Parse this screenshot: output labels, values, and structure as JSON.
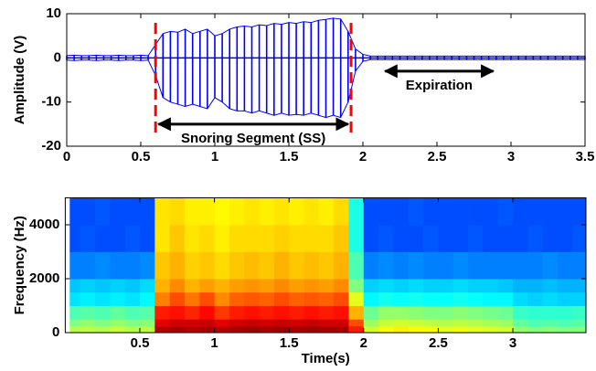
{
  "chart_data": [
    {
      "type": "waveform",
      "ylabel": "Amplitude (V)",
      "color": "#0000ff",
      "xlim": [
        0,
        3.5
      ],
      "xticks": [
        0,
        0.5,
        1,
        1.5,
        2,
        2.5,
        3,
        3.5
      ],
      "ylim": [
        -20,
        10
      ],
      "yticks": [
        -20,
        -10,
        0,
        10
      ],
      "x": [
        0,
        0.05,
        0.1,
        0.15,
        0.2,
        0.25,
        0.3,
        0.35,
        0.4,
        0.45,
        0.5,
        0.55,
        0.6,
        0.65,
        0.7,
        0.75,
        0.8,
        0.85,
        0.9,
        0.95,
        1,
        1.05,
        1.1,
        1.15,
        1.2,
        1.25,
        1.3,
        1.35,
        1.4,
        1.45,
        1.5,
        1.55,
        1.6,
        1.65,
        1.7,
        1.75,
        1.8,
        1.85,
        1.9,
        1.95,
        2,
        2.05,
        2.1,
        2.15,
        2.2,
        2.25,
        2.3,
        2.35,
        2.4,
        2.45,
        2.5,
        2.55,
        2.6,
        2.65,
        2.7,
        2.75,
        2.8,
        2.85,
        2.9,
        2.95,
        3,
        3.05,
        3.1,
        3.15,
        3.2,
        3.25,
        3.3,
        3.35,
        3.4,
        3.45,
        3.5
      ],
      "max": [
        0.5,
        0.6,
        0.5,
        0.5,
        0.6,
        0.5,
        0.5,
        0.6,
        0.5,
        0.5,
        0.6,
        0.5,
        3,
        5.5,
        6,
        5.8,
        6.5,
        5.5,
        6,
        6.5,
        5,
        5.5,
        6.5,
        7,
        7.2,
        7,
        7.5,
        7.3,
        7.8,
        7.6,
        8,
        7.8,
        8.2,
        8,
        8.5,
        8.7,
        9,
        8.8,
        6,
        2,
        0.8,
        0.4,
        0.4,
        0.4,
        0.4,
        0.4,
        0.4,
        0.4,
        0.4,
        0.4,
        0.4,
        0.4,
        0.4,
        0.4,
        0.4,
        0.4,
        0.4,
        0.4,
        0.4,
        0.4,
        0.4,
        0.4,
        0.4,
        0.4,
        0.4,
        0.4,
        0.4,
        0.4,
        0.4,
        0.4,
        0.4
      ],
      "min": [
        -0.5,
        -0.6,
        -0.5,
        -0.5,
        -0.6,
        -0.5,
        -0.5,
        -0.6,
        -0.5,
        -0.5,
        -0.6,
        -0.5,
        -4,
        -9,
        -10,
        -10.5,
        -11,
        -10.5,
        -11,
        -11.5,
        -9,
        -10,
        -11.5,
        -12,
        -12,
        -12.5,
        -12,
        -12.5,
        -13,
        -12.5,
        -13,
        -12.8,
        -13,
        -12.5,
        -13,
        -13.5,
        -13,
        -13.5,
        -10,
        -3,
        -0.8,
        -0.4,
        -0.4,
        -0.4,
        -0.4,
        -0.4,
        -0.4,
        -0.4,
        -0.4,
        -0.4,
        -0.4,
        -0.4,
        -0.4,
        -0.4,
        -0.4,
        -0.4,
        -0.4,
        -0.4,
        -0.4,
        -0.4,
        -0.4,
        -0.4,
        -0.4,
        -0.4,
        -0.4,
        -0.4,
        -0.4,
        -0.4,
        -0.4,
        -0.4,
        -0.4
      ],
      "markers": [
        {
          "x": 0.6,
          "color": "#ff0000"
        },
        {
          "x": 1.92,
          "color": "#ff0000"
        }
      ],
      "annotations": [
        {
          "text": "Snoring Segment (SS)",
          "x_start": 0.62,
          "x_end": 1.9,
          "y": -15
        },
        {
          "text": "Expiration",
          "x_start": 2.15,
          "x_end": 2.88,
          "y": -3
        }
      ]
    },
    {
      "type": "spectrogram",
      "xlabel": "Time(s)",
      "ylabel": "Frequency (Hz)",
      "colormap": "jet",
      "xlim": [
        0,
        3.49
      ],
      "xticks": [
        0.5,
        1,
        1.5,
        2,
        2.5,
        3
      ],
      "ylim": [
        0,
        5000
      ],
      "yticks": [
        0,
        2000,
        4000
      ],
      "xbins": [
        0.03,
        0.1,
        0.2,
        0.3,
        0.4,
        0.5,
        0.6,
        0.7,
        0.8,
        0.9,
        1,
        1.1,
        1.2,
        1.3,
        1.4,
        1.5,
        1.6,
        1.7,
        1.8,
        1.9,
        2,
        2.1,
        2.2,
        2.3,
        2.4,
        2.5,
        2.6,
        2.7,
        2.8,
        2.9,
        3,
        3.1,
        3.2,
        3.3,
        3.4,
        3.49
      ],
      "ybins": [
        0,
        250,
        500,
        1000,
        1500,
        2000,
        3000,
        4000,
        5000
      ],
      "z": [
        [
          0.55,
          0.5,
          0.45,
          0.35,
          0.32,
          0.25,
          0.2,
          0.2
        ],
        [
          0.56,
          0.52,
          0.46,
          0.36,
          0.33,
          0.25,
          0.21,
          0.2
        ],
        [
          0.55,
          0.5,
          0.45,
          0.35,
          0.32,
          0.26,
          0.2,
          0.21
        ],
        [
          0.57,
          0.52,
          0.47,
          0.36,
          0.33,
          0.25,
          0.2,
          0.2
        ],
        [
          0.55,
          0.5,
          0.45,
          0.35,
          0.32,
          0.25,
          0.21,
          0.2
        ],
        [
          0.56,
          0.51,
          0.46,
          0.37,
          0.34,
          0.26,
          0.2,
          0.2
        ],
        [
          0.95,
          0.9,
          0.85,
          0.75,
          0.7,
          0.68,
          0.65,
          0.65
        ],
        [
          0.96,
          0.92,
          0.86,
          0.8,
          0.74,
          0.7,
          0.68,
          0.66
        ],
        [
          0.95,
          0.92,
          0.84,
          0.76,
          0.7,
          0.67,
          0.65,
          0.64
        ],
        [
          0.96,
          0.93,
          0.87,
          0.8,
          0.72,
          0.68,
          0.66,
          0.64
        ],
        [
          0.95,
          0.9,
          0.82,
          0.74,
          0.7,
          0.66,
          0.64,
          0.63
        ],
        [
          0.96,
          0.92,
          0.85,
          0.78,
          0.72,
          0.68,
          0.66,
          0.64
        ],
        [
          0.97,
          0.93,
          0.86,
          0.79,
          0.73,
          0.69,
          0.66,
          0.65
        ],
        [
          0.96,
          0.92,
          0.85,
          0.78,
          0.72,
          0.68,
          0.66,
          0.64
        ],
        [
          0.97,
          0.93,
          0.86,
          0.8,
          0.74,
          0.7,
          0.67,
          0.65
        ],
        [
          0.96,
          0.92,
          0.85,
          0.78,
          0.72,
          0.68,
          0.66,
          0.64
        ],
        [
          0.97,
          0.93,
          0.86,
          0.79,
          0.73,
          0.69,
          0.66,
          0.65
        ],
        [
          0.96,
          0.92,
          0.85,
          0.78,
          0.72,
          0.68,
          0.66,
          0.64
        ],
        [
          0.96,
          0.92,
          0.86,
          0.8,
          0.74,
          0.7,
          0.68,
          0.66
        ],
        [
          0.85,
          0.8,
          0.7,
          0.6,
          0.5,
          0.45,
          0.4,
          0.4
        ],
        [
          0.58,
          0.53,
          0.48,
          0.37,
          0.33,
          0.25,
          0.2,
          0.2
        ],
        [
          0.62,
          0.57,
          0.52,
          0.39,
          0.34,
          0.26,
          0.21,
          0.2
        ],
        [
          0.64,
          0.58,
          0.52,
          0.38,
          0.33,
          0.25,
          0.2,
          0.2
        ],
        [
          0.63,
          0.57,
          0.51,
          0.39,
          0.34,
          0.26,
          0.2,
          0.21
        ],
        [
          0.62,
          0.56,
          0.5,
          0.38,
          0.33,
          0.25,
          0.21,
          0.2
        ],
        [
          0.6,
          0.55,
          0.5,
          0.38,
          0.33,
          0.25,
          0.2,
          0.2
        ],
        [
          0.61,
          0.56,
          0.51,
          0.39,
          0.34,
          0.26,
          0.2,
          0.2
        ],
        [
          0.6,
          0.55,
          0.5,
          0.38,
          0.33,
          0.25,
          0.21,
          0.2
        ],
        [
          0.59,
          0.54,
          0.49,
          0.37,
          0.33,
          0.25,
          0.2,
          0.2
        ],
        [
          0.58,
          0.53,
          0.48,
          0.37,
          0.32,
          0.25,
          0.2,
          0.21
        ],
        [
          0.52,
          0.47,
          0.43,
          0.34,
          0.3,
          0.25,
          0.2,
          0.2
        ],
        [
          0.5,
          0.45,
          0.42,
          0.33,
          0.3,
          0.25,
          0.21,
          0.2
        ],
        [
          0.51,
          0.46,
          0.42,
          0.34,
          0.31,
          0.26,
          0.2,
          0.2
        ],
        [
          0.5,
          0.45,
          0.42,
          0.33,
          0.3,
          0.25,
          0.2,
          0.2
        ],
        [
          0.5,
          0.46,
          0.43,
          0.33,
          0.3,
          0.25,
          0.21,
          0.2
        ]
      ]
    }
  ]
}
